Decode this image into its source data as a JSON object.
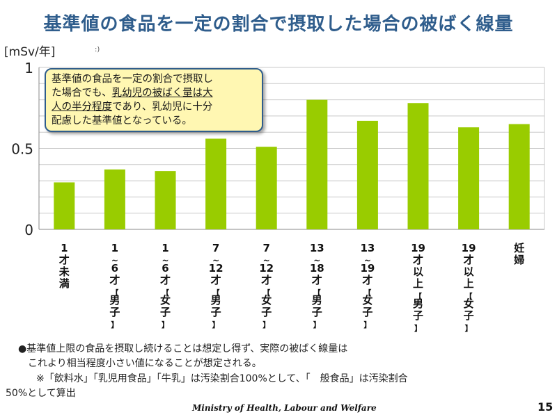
{
  "title": "基準値の食品を一定の割合で摂取した場合の被ばく線量",
  "unit_label": "[mSv/年]",
  "unit_extra": ":)",
  "callout": {
    "line1": "基準値の食品を一定の割合で摂取し",
    "line2a": "た場合でも、",
    "line2b": "乳幼児の被ばく量は大",
    "line3a": "人の半分程度",
    "line3b": "であり、乳幼児に十分",
    "line4": "配慮した基準値となっている。"
  },
  "chart_data": {
    "type": "bar",
    "categories": [
      "1才未満",
      "1~6才【男子】",
      "1~6才【女子】",
      "7~12才【男子】",
      "7~12才【女子】",
      "13~18才【男子】",
      "13~19才【女子】",
      "19才以上【男子】",
      "19才以上【女子】",
      "妊婦"
    ],
    "category_labels": [
      [
        "1",
        "才",
        "未",
        "満"
      ],
      [
        "1",
        "~",
        "6",
        "才",
        "【",
        "男",
        "子",
        "】"
      ],
      [
        "1",
        "~",
        "6",
        "才",
        "【",
        "女",
        "子",
        "】"
      ],
      [
        "7",
        "~",
        "12",
        "才",
        "【",
        "男",
        "子",
        "】"
      ],
      [
        "7",
        "~",
        "12",
        "才",
        "【",
        "女",
        "子",
        "】"
      ],
      [
        "13",
        "~",
        "18",
        "才",
        "【",
        "男",
        "子",
        "】"
      ],
      [
        "13",
        "~",
        "19",
        "才",
        "【",
        "女",
        "子",
        "】"
      ],
      [
        "19",
        "才",
        "以",
        "上",
        "【",
        "男",
        "子",
        "】"
      ],
      [
        "19",
        "才",
        "以",
        "上",
        "【",
        "女",
        "子",
        "】"
      ],
      [
        "妊",
        "婦"
      ]
    ],
    "values": [
      0.29,
      0.37,
      0.36,
      0.56,
      0.51,
      0.8,
      0.67,
      0.78,
      0.63,
      0.65
    ],
    "ylim": [
      0,
      1
    ],
    "yticks": [
      "0",
      "0.5",
      "1"
    ],
    "bar_color": "#99cc00",
    "grid": true
  },
  "notes": {
    "line1": "●基準値上限の食品を摂取し続けることは想定し得ず、実際の被ばく線量は",
    "line2": "これより相当程度小さい値になることが想定される。",
    "line3": "※「飲料水」「乳児用食品」「牛乳」は汚染割合100%として、「　般食品」は汚染割合",
    "line4": "50%として算出"
  },
  "footer": "Ministry of Health, Labour and Welfare",
  "page_number": "15"
}
